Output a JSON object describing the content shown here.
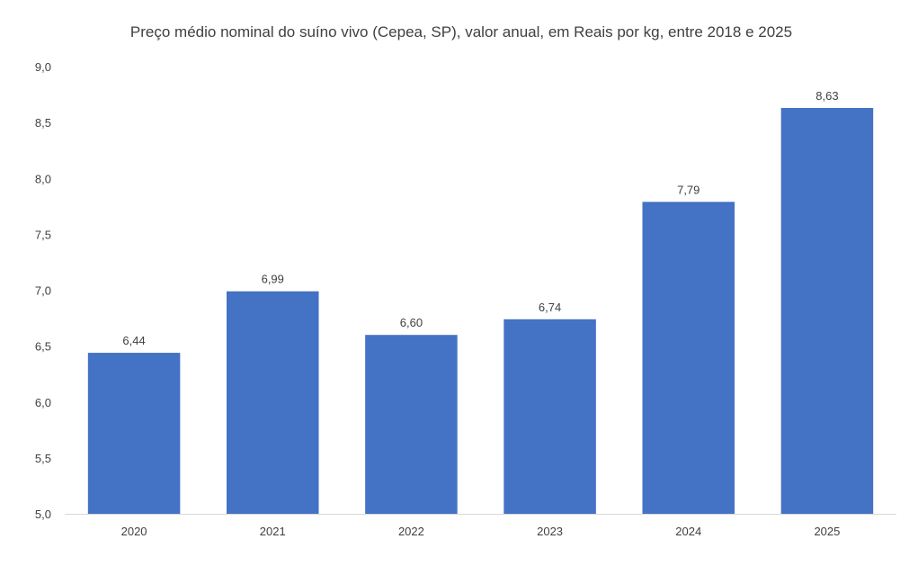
{
  "chart_data": {
    "type": "bar",
    "title": "Preço médio nominal do suíno vivo (Cepea, SP), valor anual, em Reais por kg, entre 2018 e 2025",
    "xlabel": "",
    "ylabel": "",
    "categories": [
      "2020",
      "2021",
      "2022",
      "2023",
      "2024",
      "2025"
    ],
    "values": [
      6.44,
      6.99,
      6.6,
      6.74,
      7.79,
      8.63
    ],
    "data_labels": [
      "6,44",
      "6,99",
      "6,60",
      "6,74",
      "7,79",
      "8,63"
    ],
    "ylim": [
      5.0,
      9.0
    ],
    "yticks": [
      5.0,
      5.5,
      6.0,
      6.5,
      7.0,
      7.5,
      8.0,
      8.5,
      9.0
    ],
    "ytick_labels": [
      "5,0",
      "5,5",
      "6,0",
      "6,5",
      "7,0",
      "7,5",
      "8,0",
      "8,5",
      "9,0"
    ],
    "grid": false,
    "legend": "none",
    "bar_color": "#4472C4",
    "axis_color": "#D9D9D9",
    "text_color": "#404040"
  }
}
